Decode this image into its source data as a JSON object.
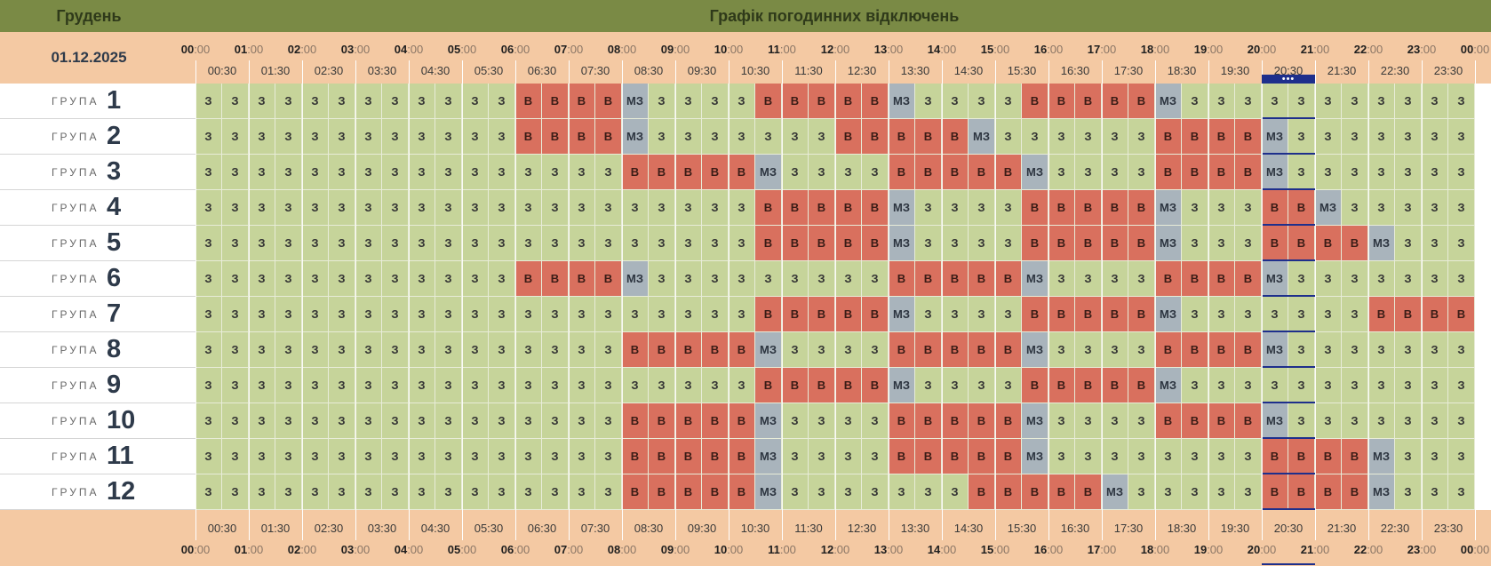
{
  "month": "Грудень",
  "title": "Графік погодинних відключень",
  "date": "01.12.2025",
  "group_word": "ГРУПА",
  "hour_labels": [
    {
      "h": "00",
      "m": ":00"
    },
    {
      "h": "01",
      "m": ":00"
    },
    {
      "h": "02",
      "m": ":00"
    },
    {
      "h": "03",
      "m": ":00"
    },
    {
      "h": "04",
      "m": ":00"
    },
    {
      "h": "05",
      "m": ":00"
    },
    {
      "h": "06",
      "m": ":00"
    },
    {
      "h": "07",
      "m": ":00"
    },
    {
      "h": "08",
      "m": ":00"
    },
    {
      "h": "09",
      "m": ":00"
    },
    {
      "h": "10",
      "m": ":00"
    },
    {
      "h": "11",
      "m": ":00"
    },
    {
      "h": "12",
      "m": ":00"
    },
    {
      "h": "13",
      "m": ":00"
    },
    {
      "h": "14",
      "m": ":00"
    },
    {
      "h": "15",
      "m": ":00"
    },
    {
      "h": "16",
      "m": ":00"
    },
    {
      "h": "17",
      "m": ":00"
    },
    {
      "h": "18",
      "m": ":00"
    },
    {
      "h": "19",
      "m": ":00"
    },
    {
      "h": "20",
      "m": ":00"
    },
    {
      "h": "21",
      "m": ":00"
    },
    {
      "h": "22",
      "m": ":00"
    },
    {
      "h": "23",
      "m": ":00"
    },
    {
      "h": "00",
      "m": ":00"
    }
  ],
  "half_labels": [
    "00:30",
    "01:30",
    "02:30",
    "03:30",
    "04:30",
    "05:30",
    "06:30",
    "07:30",
    "08:30",
    "09:30",
    "10:30",
    "11:30",
    "12:30",
    "13:30",
    "14:30",
    "15:30",
    "16:30",
    "17:30",
    "18:30",
    "19:30",
    "20:30",
    "21:30",
    "22:30",
    "23:30"
  ],
  "legend_codes": {
    "z": "З",
    "v": "В",
    "m": "МЗ"
  },
  "status_colors": {
    "on": "#c6d49a",
    "off": "#d9705e",
    "maybe": "#a9b4bc",
    "header": "#7a8a45",
    "band": "#f4c9a3",
    "current": "#1e2f8c"
  },
  "current_marker_label": "•••",
  "current_slot_start": 40,
  "groups": [
    {
      "number": "1",
      "slots": "zzzzzzzzzzzzvvvvmzzzzvvvvvmzzzzvvvvvmzzzzzzzzzzz"
    },
    {
      "number": "2",
      "slots": "zzzzzzzzzzzzvvvvmzzzzzzzvvvvvmzzzzzzvvvvmzzzzzzz"
    },
    {
      "number": "3",
      "slots": "zzzzzzzzzzzzzzzzvvvvvmzzzzvvvvvmzzzzvvvvmzzzzzzz"
    },
    {
      "number": "4",
      "slots": "zzzzzzzzzzzzzzzzzzzzzvvvvvmzzzzvvvvvmzzzvvmzzzzz"
    },
    {
      "number": "5",
      "slots": "zzzzzzzzzzzzzzzzzzzzzvvvvvmzzzzvvvvvmzzzvvvvmzzz"
    },
    {
      "number": "6",
      "slots": "zzzzzzzzzzzzvvvvmzzzzzzzzzvvvvvmzzzzvvvvmzzzzzzz"
    },
    {
      "number": "7",
      "slots": "zzzzzzzzzzzzzzzzzzzzzvvvvvmzzzzvvvvvmzzzzzzzvvvv"
    },
    {
      "number": "8",
      "slots": "zzzzzzzzzzzzzzzzvvvvvmzzzzvvvvvmzzzzvvvvmzzzzzzz"
    },
    {
      "number": "9",
      "slots": "zzzzzzzzzzzzzzzzzzzzzvvvvvmzzzzvvvvvmzzzzzzzzzzz"
    },
    {
      "number": "10",
      "slots": "zzzzzzzzzzzzzzzzvvvvvmzzzzvvvvvmzzzzvvvvmzzzzzzz"
    },
    {
      "number": "11",
      "slots": "zzzzzzzzzzzzzzzzvvvvvmzzzzvvvvvmzzzzzzzzvvvvmzzz"
    },
    {
      "number": "12",
      "slots": "zzzzzzzzzzzzzzzzvvvvvmzzzzzzzvvvvvmzzzzzvvvvmzzz"
    }
  ]
}
